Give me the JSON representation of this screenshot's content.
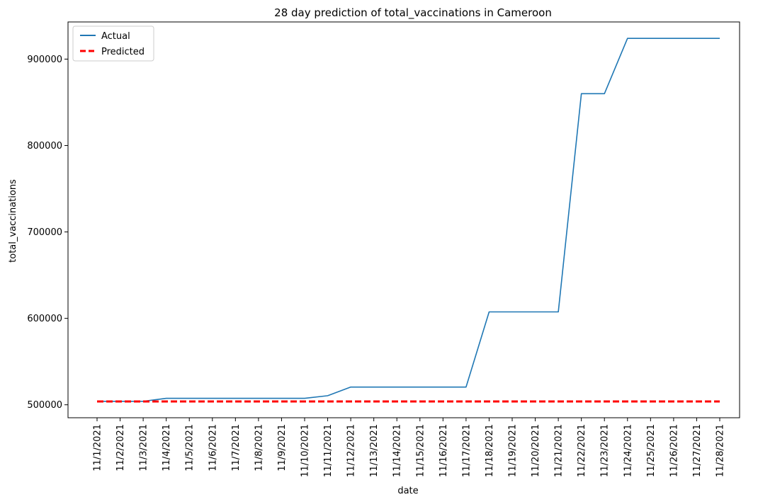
{
  "chart_data": {
    "type": "line",
    "title": "28 day prediction of total_vaccinations in Cameroon",
    "xlabel": "date",
    "ylabel": "total_vaccinations",
    "categories": [
      "11/1/2021",
      "11/2/2021",
      "11/3/2021",
      "11/4/2021",
      "11/5/2021",
      "11/6/2021",
      "11/7/2021",
      "11/8/2021",
      "11/9/2021",
      "11/10/2021",
      "11/11/2021",
      "11/12/2021",
      "11/13/2021",
      "11/14/2021",
      "11/15/2021",
      "11/16/2021",
      "11/17/2021",
      "11/18/2021",
      "11/19/2021",
      "11/20/2021",
      "11/21/2021",
      "11/22/2021",
      "11/23/2021",
      "11/24/2021",
      "11/25/2021",
      "11/26/2021",
      "11/27/2021",
      "11/28/2021"
    ],
    "yticks": [
      500000,
      600000,
      700000,
      800000,
      900000
    ],
    "ylim": [
      485000,
      943000
    ],
    "grid": false,
    "legend_position": "top-left",
    "series": [
      {
        "name": "Actual",
        "color": "#1f77b4",
        "style": "solid",
        "values": [
          504000,
          504000,
          504000,
          507500,
          507500,
          507500,
          507500,
          507500,
          507500,
          507500,
          510500,
          520500,
          520500,
          520500,
          520500,
          520500,
          520500,
          607500,
          607500,
          607500,
          607500,
          860000,
          860000,
          924000,
          924000,
          924000,
          924000,
          924000
        ]
      },
      {
        "name": "Predicted",
        "color": "#ff0000",
        "style": "dashed",
        "values": [
          503800,
          503800,
          503800,
          503800,
          503800,
          503800,
          503800,
          503800,
          503800,
          503800,
          503800,
          503800,
          503800,
          503800,
          503800,
          503800,
          503800,
          503800,
          503800,
          503800,
          503800,
          503800,
          503800,
          503800,
          503800,
          503800,
          503800,
          503800
        ]
      }
    ]
  }
}
